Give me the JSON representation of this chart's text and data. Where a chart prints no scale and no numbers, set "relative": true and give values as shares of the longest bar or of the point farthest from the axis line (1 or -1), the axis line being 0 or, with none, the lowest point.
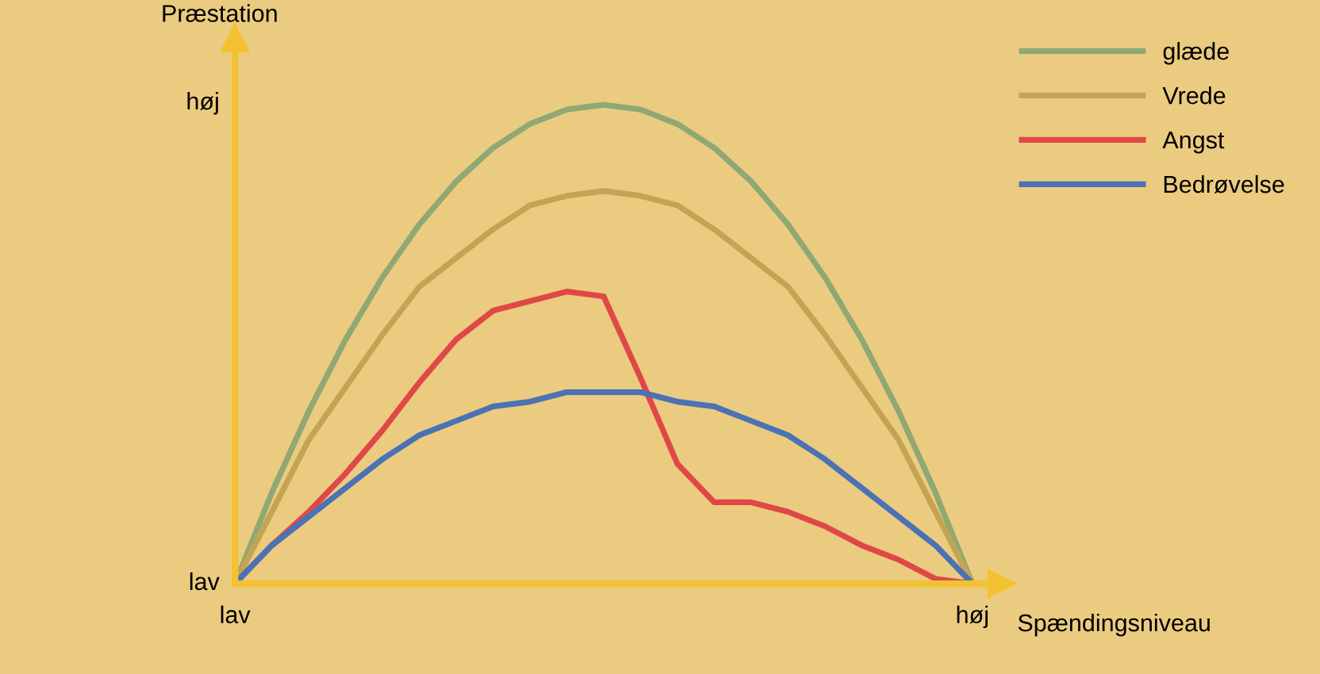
{
  "chart_data": {
    "type": "line",
    "relative": true,
    "xlabel": "Spændingsniveau",
    "ylabel": "Præstation",
    "categories": [
      null,
      null,
      null,
      null,
      null,
      null,
      null,
      null,
      null,
      null,
      null,
      null,
      null,
      null,
      null,
      null,
      null,
      null,
      null,
      null,
      null
    ],
    "annotations": [
      "lav",
      "høj",
      "lav",
      "høj"
    ],
    "grid": false,
    "legend": "top right",
    "marker": "none",
    "line_style": "solid",
    "series": [
      {
        "name": "glæde",
        "color": "#8fa874",
        "values": [
          0,
          0.19,
          0.36,
          0.51,
          0.64,
          0.75,
          0.84,
          0.91,
          0.96,
          0.99,
          1,
          0.99,
          0.96,
          0.91,
          0.84,
          0.75,
          0.64,
          0.51,
          0.36,
          0.19,
          0
        ]
      },
      {
        "name": "Vrede",
        "color": "#c4a452",
        "values": [
          0,
          0.15,
          0.3,
          0.41,
          0.52,
          0.62,
          0.68,
          0.74,
          0.79,
          0.81,
          0.82,
          0.81,
          0.79,
          0.74,
          0.68,
          0.62,
          0.52,
          0.41,
          0.3,
          0.15,
          0
        ]
      },
      {
        "name": "Angst",
        "color": "#e04848",
        "values": [
          0,
          0.08,
          0.15,
          0.23,
          0.32,
          0.42,
          0.51,
          0.57,
          0.59,
          0.61,
          0.6,
          0.43,
          0.25,
          0.17,
          0.17,
          0.15,
          0.12,
          0.08,
          0.05,
          0.01,
          0
        ]
      },
      {
        "name": "Bedrøvelse",
        "color": "#4a72b4",
        "values": [
          0,
          0.08,
          0.14,
          0.2,
          0.26,
          0.31,
          0.34,
          0.37,
          0.38,
          0.4,
          0.4,
          0.4,
          0.38,
          0.37,
          0.34,
          0.31,
          0.26,
          0.2,
          0.14,
          0.08,
          0
        ]
      }
    ]
  }
}
